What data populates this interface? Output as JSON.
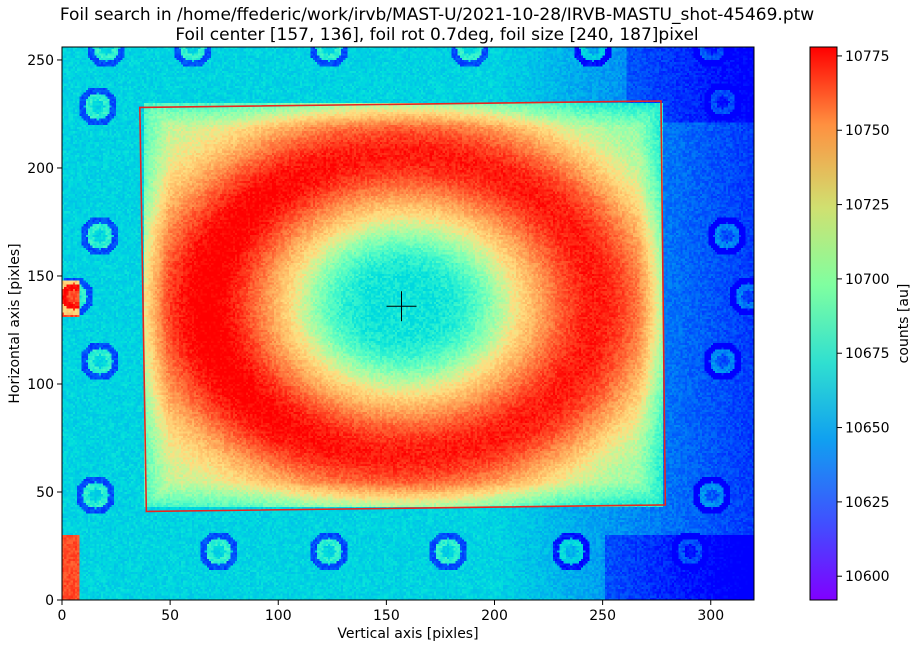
{
  "title_line1": "Foil search in /home/ffederic/work/irvb/MAST-U/2021-10-28/IRVB-MASTU_shot-45469.ptw",
  "title_line2": "Foil center [157, 136], foil rot 0.7deg, foil size [240, 187]pixel",
  "chart_data": {
    "type": "heatmap",
    "xlabel": "Vertical axis [pixles]",
    "ylabel": "Horizontal axis [pixles]",
    "xlim": [
      0,
      320
    ],
    "ylim": [
      0,
      256
    ],
    "xticks": [
      0,
      50,
      100,
      150,
      200,
      250,
      300
    ],
    "yticks": [
      0,
      50,
      100,
      150,
      200,
      250
    ],
    "colormap": "rainbow",
    "colorbar": {
      "label": "counts [au]",
      "range": [
        10592,
        10778
      ],
      "ticks": [
        10600,
        10625,
        10650,
        10675,
        10700,
        10725,
        10750,
        10775
      ]
    },
    "foil_center": [
      157,
      136
    ],
    "foil_rotation_deg": 0.7,
    "foil_size": [
      240,
      187
    ],
    "foil_outline": {
      "color": "#e8261f",
      "corners": [
        [
          36,
          228
        ],
        [
          277,
          231
        ],
        [
          279,
          44
        ],
        [
          39,
          41
        ]
      ]
    },
    "center_marker_color": "#000000"
  }
}
